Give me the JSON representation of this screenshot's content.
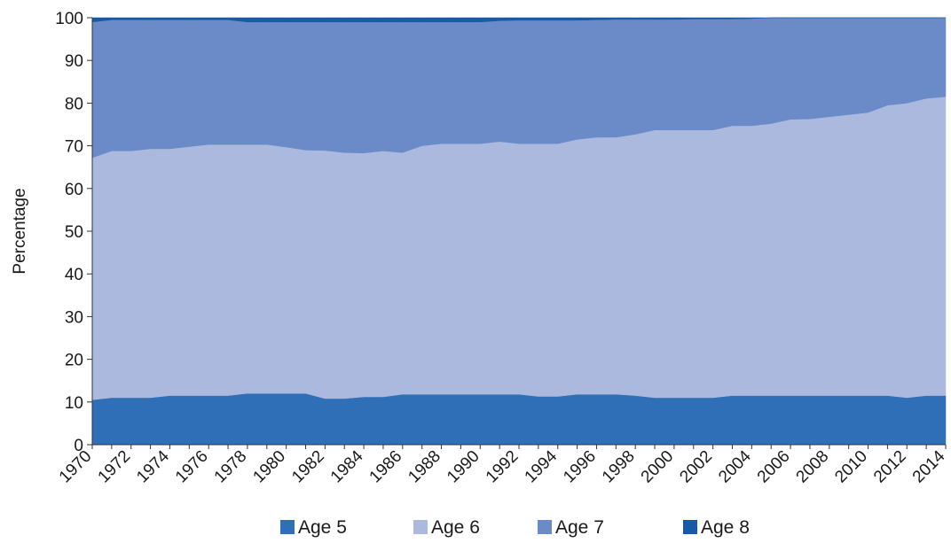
{
  "chart_data": {
    "type": "area",
    "stacked": true,
    "ylabel": "Percentage",
    "ylim": [
      0,
      100
    ],
    "yticks": [
      0,
      10,
      20,
      30,
      40,
      50,
      60,
      70,
      80,
      90,
      100
    ],
    "x": [
      1970,
      1971,
      1972,
      1973,
      1974,
      1975,
      1976,
      1977,
      1978,
      1979,
      1980,
      1981,
      1982,
      1983,
      1984,
      1985,
      1986,
      1987,
      1988,
      1989,
      1990,
      1991,
      1992,
      1993,
      1994,
      1995,
      1996,
      1997,
      1998,
      1999,
      2000,
      2001,
      2002,
      2003,
      2004,
      2005,
      2006,
      2007,
      2008,
      2009,
      2010,
      2011,
      2012,
      2013,
      2014
    ],
    "xticks": [
      "1970",
      "1972",
      "1974",
      "1976",
      "1978",
      "1980",
      "1982",
      "1984",
      "1986",
      "1988",
      "1990",
      "1992",
      "1994",
      "1996",
      "1998",
      "2000",
      "2002",
      "2004",
      "2006",
      "2008",
      "2010",
      "2012",
      "2014"
    ],
    "legend_position": "bottom",
    "series": [
      {
        "name": "Age 5",
        "color": "#2e6fb7",
        "values": [
          10.5,
          11.0,
          11.0,
          11.0,
          11.5,
          11.5,
          11.5,
          11.5,
          12.0,
          12.0,
          12.0,
          12.0,
          10.8,
          10.8,
          11.2,
          11.2,
          11.8,
          11.8,
          11.8,
          11.8,
          11.8,
          11.8,
          11.8,
          11.3,
          11.3,
          11.8,
          11.8,
          11.8,
          11.5,
          11.0,
          11.0,
          11.0,
          11.0,
          11.5,
          11.5,
          11.5,
          11.5,
          11.5,
          11.5,
          11.5,
          11.5,
          11.5,
          11.0,
          11.5,
          11.5
        ]
      },
      {
        "name": "Age 6",
        "color": "#abb9de",
        "values": [
          56.7,
          57.8,
          57.8,
          58.3,
          57.8,
          58.3,
          58.8,
          58.8,
          58.3,
          58.3,
          57.7,
          57.0,
          58.1,
          57.6,
          57.1,
          57.6,
          56.6,
          58.2,
          58.7,
          58.7,
          58.7,
          59.2,
          58.7,
          59.2,
          59.2,
          59.7,
          60.2,
          60.2,
          61.2,
          62.7,
          62.7,
          62.7,
          62.7,
          63.2,
          63.2,
          63.7,
          64.7,
          64.8,
          65.3,
          65.8,
          66.3,
          68.0,
          69.0,
          69.6,
          70.0
        ]
      },
      {
        "name": "Age 7",
        "color": "#6a8bc8",
        "values": [
          31.8,
          30.7,
          30.7,
          30.2,
          30.2,
          29.7,
          29.2,
          29.2,
          28.7,
          28.7,
          29.3,
          30.0,
          30.1,
          30.6,
          30.7,
          30.2,
          30.6,
          29.0,
          28.5,
          28.5,
          28.5,
          28.3,
          28.9,
          28.9,
          28.9,
          27.9,
          27.5,
          27.6,
          26.9,
          25.9,
          25.9,
          26.0,
          26.0,
          25.0,
          25.1,
          24.8,
          23.8,
          23.7,
          23.2,
          22.7,
          22.2,
          20.5,
          20.0,
          18.9,
          18.5
        ]
      },
      {
        "name": "Age 8",
        "color": "#185aa6",
        "values": [
          1.0,
          0.5,
          0.5,
          0.5,
          0.5,
          0.5,
          0.5,
          0.5,
          1.0,
          1.0,
          1.0,
          1.0,
          1.0,
          1.0,
          1.0,
          1.0,
          1.0,
          1.0,
          1.0,
          1.0,
          1.0,
          0.7,
          0.6,
          0.6,
          0.6,
          0.6,
          0.5,
          0.4,
          0.4,
          0.4,
          0.4,
          0.3,
          0.3,
          0.3,
          0.2,
          0.0,
          0.0,
          0.0,
          0.0,
          0.0,
          0.0,
          0.0,
          0.0,
          0.0,
          0.0
        ]
      }
    ]
  }
}
